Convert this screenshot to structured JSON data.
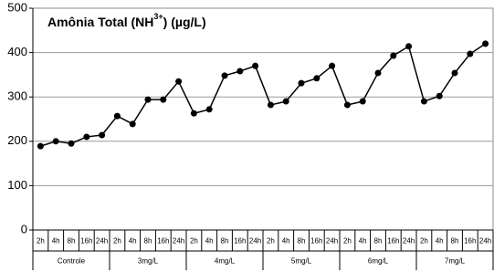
{
  "chart_data": {
    "type": "line",
    "title": {
      "text": "Amônia Total (NH",
      "superscript": "3+",
      "suffix": ") (µg/L)"
    },
    "categories": [
      "2h",
      "4h",
      "8h",
      "16h",
      "24h",
      "2h",
      "4h",
      "8h",
      "16h",
      "24h",
      "2h",
      "4h",
      "8h",
      "16h",
      "24h",
      "2h",
      "4h",
      "8h",
      "16h",
      "24h",
      "2h",
      "4h",
      "8h",
      "16h",
      "24h",
      "2h",
      "4h",
      "8h",
      "16h",
      "24h"
    ],
    "groups": [
      "Controle",
      "3mg/L",
      "4mg/L",
      "5mg/L",
      "6mg/L",
      "7mg/L"
    ],
    "values": [
      189,
      200,
      195,
      210,
      214,
      257,
      239,
      294,
      294,
      335,
      263,
      272,
      348,
      358,
      370,
      282,
      290,
      331,
      342,
      370,
      282,
      290,
      354,
      393,
      414,
      290,
      302,
      354,
      397,
      420
    ],
    "color": "#000000",
    "ylim": [
      0,
      500
    ],
    "yticks": [
      0,
      100,
      200,
      300,
      400,
      500
    ],
    "grid": true
  }
}
